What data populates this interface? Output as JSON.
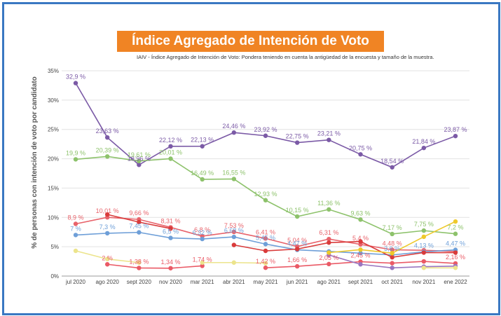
{
  "title": "Índice  Agregado de Intención de Voto",
  "subtitle": "IAIV - Índice Agregado de Intención de Voto: Pondera teniendo en cuenta la antigüedad de la encuesta y tamaño de la muestra.",
  "chart_data": {
    "type": "line",
    "ylabel": "% de personas con intención de voto por candidato",
    "ylim": [
      0,
      35
    ],
    "yticks": [
      "0%",
      "5%",
      "10%",
      "15%",
      "20%",
      "25%",
      "30%",
      "35%"
    ],
    "grid": true,
    "categories": [
      "jul 2020",
      "ago 2020",
      "sept 2020",
      "nov 2020",
      "mar 2021",
      "abr 2021",
      "may 2021",
      "jun 2021",
      "ago 2021",
      "sept 2021",
      "oct 2021",
      "nov 2021",
      "ene 2022"
    ],
    "series": [
      {
        "color": "#7b5aa6",
        "values": [
          32.9,
          23.63,
          18.96,
          22.12,
          22.13,
          24.46,
          23.92,
          22.75,
          23.21,
          20.75,
          18.54,
          21.84,
          23.87
        ],
        "labels": [
          "32,9 %",
          "23,63 %",
          "18,96 %",
          "22,12 %",
          "22,13 %",
          "24,46 %",
          "23,92 %",
          "22,75 %",
          "23,21 %",
          "20,75 %",
          "18,54 %",
          "21,84 %",
          "23,87 %"
        ]
      },
      {
        "color": "#8dc26b",
        "values": [
          19.9,
          20.39,
          19.61,
          20.01,
          16.49,
          16.55,
          12.93,
          10.15,
          11.36,
          9.63,
          7.17,
          7.75,
          7.2
        ],
        "labels": [
          "19,9 %",
          "20,39 %",
          "19,61 %",
          "20,01 %",
          "16,49 %",
          "16,55 %",
          "12,93 %",
          "10,15 %",
          "11,36 %",
          "9,63 %",
          "7,17 %",
          "7,75 %",
          "7,2 %"
        ]
      },
      {
        "color": "#e8636b",
        "values": [
          8.9,
          10.01,
          9.66,
          8.31,
          6.8,
          7.53,
          6.41,
          5.04,
          6.31,
          5.4,
          4.48,
          4.4,
          4.2
        ],
        "labels": [
          "8,9 %",
          "10,01 %",
          "9,66 %",
          "8,31 %",
          "6,8 %",
          "7,53 %",
          "6,41 %",
          "5,04 %",
          "6,31 %",
          "5,4 %",
          "4,48 %",
          "",
          ""
        ]
      },
      {
        "color": "#6e9fd8",
        "values": [
          7.0,
          7.3,
          7.45,
          6.5,
          6.32,
          6.68,
          5.45,
          4.47,
          4.2,
          3.9,
          3.6,
          4.13,
          4.47
        ],
        "labels": [
          "7 %",
          "7,3 %",
          "7,45 %",
          "6,5 %",
          "6,32 %",
          "6,68 %",
          "5,45 %",
          "4,47 %",
          "",
          "",
          "3,6 %",
          "4,13 %",
          "4,47 %"
        ]
      },
      {
        "color": "#d93b3b",
        "values": [
          null,
          10.5,
          9.2,
          8.1,
          null,
          5.3,
          4.3,
          4.6,
          5.7,
          5.9,
          3.2,
          4.0,
          4.0
        ],
        "labels": [
          "",
          "",
          "",
          "",
          "",
          "",
          "",
          "",
          "",
          "",
          "",
          "",
          ""
        ]
      },
      {
        "color": "#ea5a66",
        "values": [
          null,
          2.0,
          1.38,
          1.34,
          1.74,
          null,
          1.42,
          1.66,
          2.05,
          2.45,
          2.2,
          2.5,
          2.16
        ],
        "labels": [
          "",
          "2 %",
          "1,38 %",
          "1,34 %",
          "1,74 %",
          "",
          "1,42 %",
          "1,66 %",
          "2,05 %",
          "2,45 %",
          "",
          "",
          "2,16 %"
        ]
      },
      {
        "color": "#9a76c0",
        "values": [
          null,
          null,
          null,
          null,
          null,
          null,
          null,
          null,
          3.6,
          2.0,
          1.4,
          1.6,
          1.7
        ],
        "labels": [
          "",
          "",
          "",
          "",
          "",
          "",
          "",
          "",
          "",
          "",
          "",
          "",
          ""
        ]
      },
      {
        "color": "#eec92a",
        "values": [
          null,
          null,
          null,
          null,
          null,
          null,
          null,
          null,
          4.0,
          4.5,
          3.9,
          6.7,
          9.3
        ],
        "labels": [
          "",
          "",
          "",
          "",
          "",
          "",
          "",
          "",
          "",
          "",
          "",
          "",
          ""
        ]
      },
      {
        "color": "#ece48c",
        "values": [
          4.3,
          2.9,
          2.3,
          null,
          2.3,
          2.3,
          2.2,
          null,
          null,
          null,
          null,
          1.4,
          1.4
        ],
        "labels": [
          "",
          "",
          "",
          "",
          "",
          "",
          "",
          "",
          "",
          "",
          "",
          "",
          ""
        ]
      }
    ]
  }
}
